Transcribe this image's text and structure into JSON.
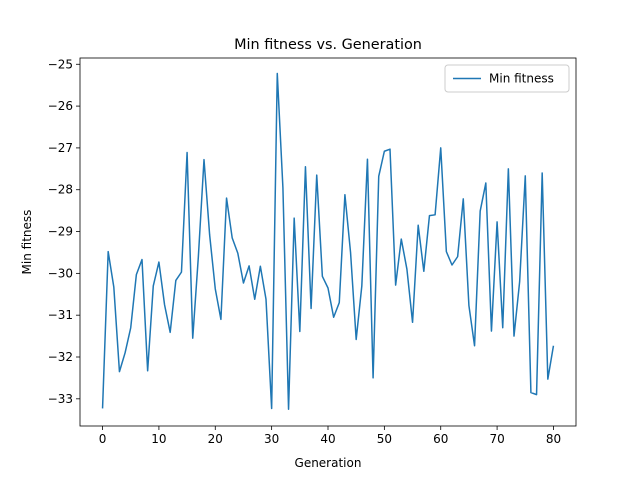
{
  "chart_data": {
    "type": "line",
    "title": "Min fitness vs. Generation",
    "xlabel": "Generation",
    "ylabel": "Min fitness",
    "xlim": [
      -4,
      84
    ],
    "ylim": [
      -33.65,
      -24.85
    ],
    "xticks": [
      0,
      10,
      20,
      30,
      40,
      50,
      60,
      70,
      80
    ],
    "yticks": [
      -33,
      -32,
      -31,
      -30,
      -29,
      -28,
      -27,
      -26,
      -25
    ],
    "grid": false,
    "legend_position": "top-right",
    "series": [
      {
        "name": "Min fitness",
        "color": "#1f77b4",
        "x": [
          0,
          1,
          2,
          3,
          4,
          5,
          6,
          7,
          8,
          9,
          10,
          11,
          12,
          13,
          14,
          15,
          16,
          17,
          18,
          19,
          20,
          21,
          22,
          23,
          24,
          25,
          26,
          27,
          28,
          29,
          30,
          31,
          32,
          33,
          34,
          35,
          36,
          37,
          38,
          39,
          40,
          41,
          42,
          43,
          44,
          45,
          46,
          47,
          48,
          49,
          50,
          51,
          52,
          53,
          54,
          55,
          56,
          57,
          58,
          59,
          60,
          61,
          62,
          63,
          64,
          65,
          66,
          67,
          68,
          69,
          70,
          71,
          72,
          73,
          74,
          75,
          76,
          77,
          78,
          79,
          80
        ],
        "values": [
          -33.23,
          -29.48,
          -30.33,
          -32.35,
          -31.9,
          -31.3,
          -30.03,
          -29.67,
          -32.33,
          -30.3,
          -29.73,
          -30.75,
          -31.41,
          -30.17,
          -29.97,
          -27.11,
          -31.55,
          -29.6,
          -27.28,
          -29.08,
          -30.37,
          -31.1,
          -28.2,
          -29.15,
          -29.52,
          -30.23,
          -29.82,
          -30.62,
          -29.83,
          -30.62,
          -33.23,
          -25.22,
          -27.95,
          -33.25,
          -28.68,
          -31.39,
          -27.45,
          -30.84,
          -27.65,
          -30.07,
          -30.35,
          -31.05,
          -30.7,
          -28.12,
          -29.5,
          -31.58,
          -30.3,
          -27.27,
          -32.5,
          -27.68,
          -27.08,
          -27.03,
          -30.28,
          -29.18,
          -29.9,
          -31.17,
          -28.85,
          -29.95,
          -28.62,
          -28.6,
          -27.0,
          -29.48,
          -29.8,
          -29.6,
          -28.22,
          -30.77,
          -31.73,
          -28.51,
          -27.84,
          -31.38,
          -28.77,
          -31.3,
          -27.5,
          -31.5,
          -30.2,
          -27.67,
          -32.85,
          -32.9,
          -27.6,
          -32.53,
          -31.73
        ]
      }
    ]
  }
}
